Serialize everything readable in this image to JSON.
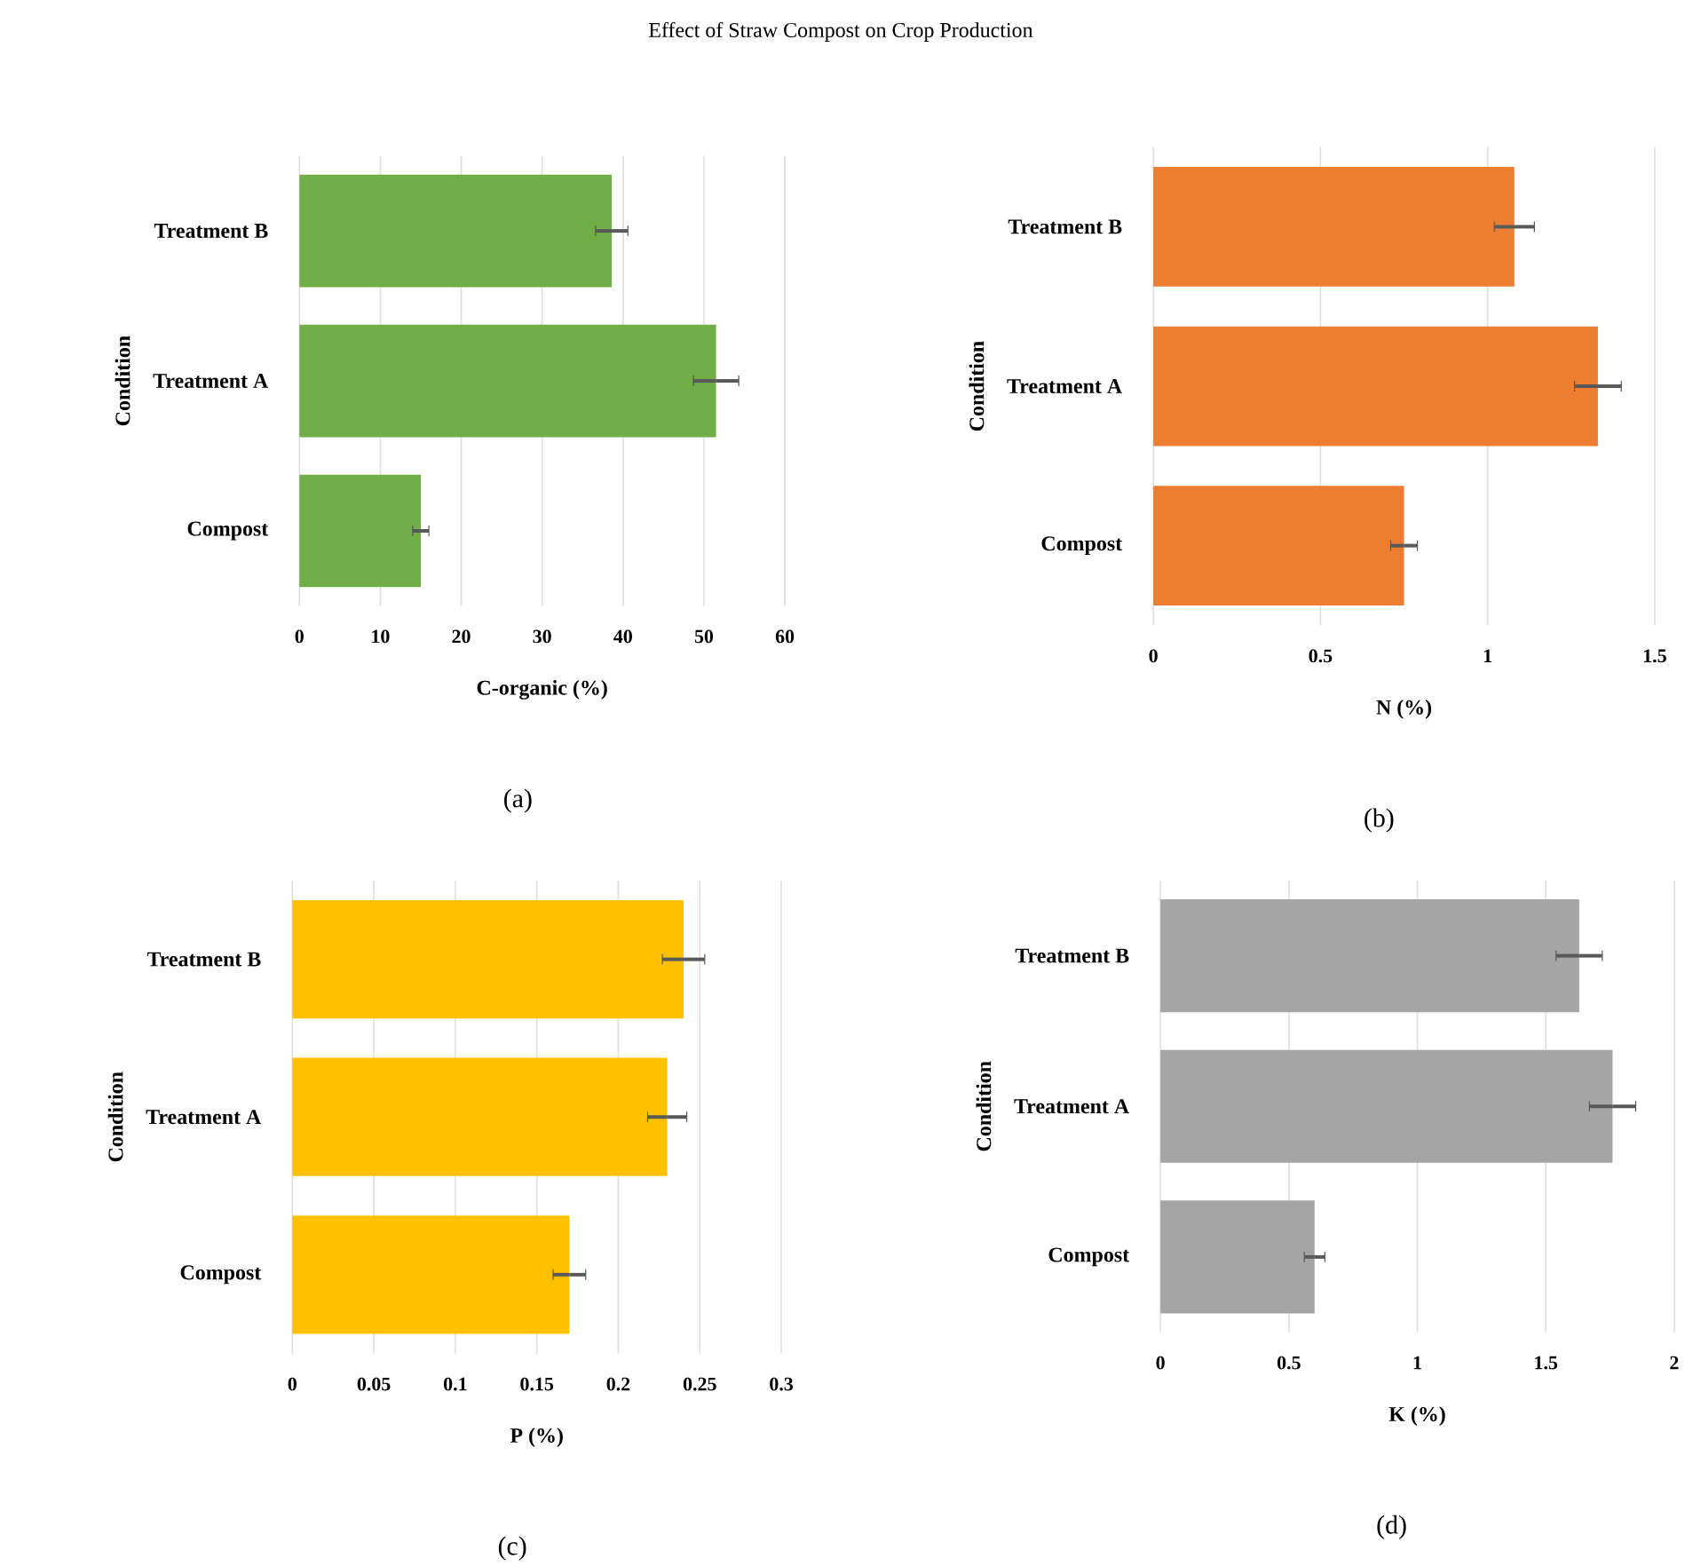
{
  "chart_data": [
    {
      "type": "other",
      "title": "Effect of Straw Compost on Crop Production"
    },
    {
      "type": "bar",
      "orientation": "horizontal",
      "xlabel": "C-organic (%)",
      "ylabel": "Condition",
      "categories": [
        "Treatment B",
        "Treatment A",
        "Compost"
      ],
      "values": [
        38.6,
        51.5,
        15.0
      ],
      "errors": [
        2,
        2.8,
        1
      ],
      "color": "#70ad47",
      "xlim": [
        0,
        60
      ],
      "xticks": [
        0,
        10,
        20,
        30,
        40,
        50,
        60
      ],
      "grid": "x",
      "annotations": [
        "(a)"
      ]
    },
    {
      "type": "bar",
      "orientation": "horizontal",
      "xlabel": "N (%)",
      "ylabel": "Condition",
      "categories": [
        "Treatment B",
        "Treatment A",
        "Compost"
      ],
      "values": [
        1.08,
        1.33,
        0.75
      ],
      "errors": [
        0.06,
        0.07,
        0.04
      ],
      "color": "#ed7d31",
      "xlim": [
        0,
        1.5
      ],
      "xticks": [
        0,
        0.5,
        1,
        1.5
      ],
      "grid": "x",
      "annotations": [
        "(b)"
      ]
    },
    {
      "type": "bar",
      "orientation": "horizontal",
      "xlabel": "P (%)",
      "ylabel": "Condition",
      "categories": [
        "Treatment B",
        "Treatment A",
        "Compost"
      ],
      "values": [
        0.24,
        0.23,
        0.17
      ],
      "errors": [
        0.013,
        0.012,
        0.01
      ],
      "color": "#ffc000",
      "xlim": [
        0,
        0.3
      ],
      "xticks": [
        0,
        0.05,
        0.1,
        0.15,
        0.2,
        0.25,
        0.3
      ],
      "grid": "x",
      "annotations": [
        "(c)"
      ]
    },
    {
      "type": "bar",
      "orientation": "horizontal",
      "xlabel": "K (%)",
      "ylabel": "Condition",
      "categories": [
        "Treatment B",
        "Treatment A",
        "Compost"
      ],
      "values": [
        1.63,
        1.76,
        0.6
      ],
      "errors": [
        0.09,
        0.09,
        0.04
      ],
      "color": "#a5a5a5",
      "xlim": [
        0,
        2
      ],
      "xticks": [
        0,
        0.5,
        1,
        1.5,
        2
      ],
      "grid": "x",
      "annotations": [
        "(d)"
      ]
    }
  ]
}
